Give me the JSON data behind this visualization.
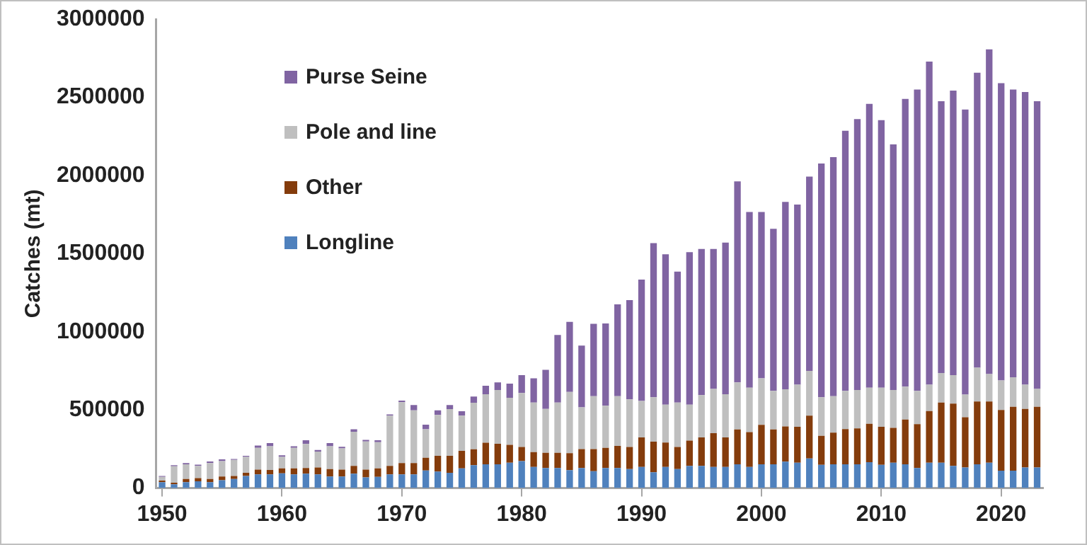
{
  "chart_data": {
    "type": "bar",
    "stacked": true,
    "ylabel": "Catches (mt)",
    "categories": [
      "1950",
      null,
      null,
      null,
      null,
      null,
      null,
      null,
      null,
      null,
      "1960",
      null,
      null,
      null,
      null,
      null,
      null,
      null,
      null,
      null,
      "1970",
      null,
      null,
      null,
      null,
      null,
      null,
      null,
      null,
      null,
      "1980",
      null,
      null,
      null,
      null,
      null,
      null,
      null,
      null,
      null,
      "1990",
      null,
      null,
      null,
      null,
      null,
      null,
      null,
      null,
      null,
      "2000",
      null,
      null,
      null,
      null,
      null,
      null,
      null,
      null,
      null,
      "2010",
      null,
      null,
      null,
      null,
      null,
      null,
      null,
      null,
      null,
      "2020",
      null,
      null,
      null
    ],
    "series": [
      {
        "name": "Longline",
        "color": "#4f81bd",
        "values": [
          38000,
          24000,
          38000,
          44000,
          38000,
          50000,
          58000,
          78000,
          88000,
          88000,
          94000,
          88000,
          92000,
          88000,
          74000,
          74000,
          92000,
          68000,
          72000,
          88000,
          88000,
          88000,
          112000,
          106000,
          98000,
          126000,
          146000,
          152000,
          152000,
          162000,
          172000,
          135000,
          128000,
          128000,
          115000,
          128000,
          108000,
          128000,
          128000,
          122000,
          135000,
          101000,
          135000,
          122000,
          142000,
          142000,
          135000,
          135000,
          152000,
          135000,
          152000,
          152000,
          169000,
          162000,
          189000,
          149000,
          152000,
          152000,
          152000,
          166000,
          149000,
          162000,
          152000,
          128000,
          162000,
          162000,
          142000,
          132000,
          152000,
          162000,
          111000,
          111000,
          132000,
          132000
        ]
      },
      {
        "name": "Other",
        "color": "#843c0c",
        "values": [
          10000,
          10000,
          20000,
          20000,
          20000,
          24000,
          20000,
          20000,
          30000,
          28000,
          32000,
          38000,
          36000,
          44000,
          48000,
          44000,
          50000,
          50000,
          54000,
          54000,
          72000,
          72000,
          82000,
          100000,
          108000,
          112000,
          102000,
          138000,
          132000,
          115000,
          91000,
          95000,
          98000,
          98000,
          108000,
          122000,
          142000,
          129000,
          142000,
          141000,
          189000,
          196000,
          156000,
          141000,
          162000,
          182000,
          216000,
          189000,
          223000,
          223000,
          253000,
          223000,
          226000,
          230000,
          274000,
          185000,
          203000,
          226000,
          230000,
          246000,
          243000,
          223000,
          287000,
          281000,
          331000,
          385000,
          399000,
          321000,
          402000,
          392000,
          389000,
          409000,
          375000,
          388000
        ]
      },
      {
        "name": "Pole and line",
        "color": "#bfbfbf",
        "values": [
          24000,
          106000,
          94000,
          78000,
          102000,
          98000,
          102000,
          102000,
          140000,
          152000,
          74000,
          132000,
          154000,
          102000,
          146000,
          136000,
          218000,
          180000,
          168000,
          322000,
          390000,
          338000,
          182000,
          262000,
          300000,
          226000,
          298000,
          311000,
          344000,
          301000,
          345000,
          317000,
          281000,
          321000,
          392000,
          267000,
          338000,
          270000,
          318000,
          305000,
          233000,
          284000,
          243000,
          284000,
          230000,
          271000,
          284000,
          277000,
          301000,
          284000,
          298000,
          247000,
          237000,
          270000,
          287000,
          247000,
          233000,
          244000,
          246000,
          230000,
          250000,
          243000,
          210000,
          213000,
          169000,
          189000,
          182000,
          145000,
          216000,
          176000,
          189000,
          189000,
          155000,
          115000
        ]
      },
      {
        "name": "Purse Seine",
        "color": "#8064a2",
        "values": [
          6000,
          6000,
          8000,
          8000,
          10000,
          12000,
          6000,
          6000,
          14000,
          20000,
          10000,
          10000,
          24000,
          10000,
          20000,
          10000,
          16000,
          10000,
          12000,
          8000,
          10000,
          34000,
          30000,
          30000,
          26000,
          28000,
          40000,
          54000,
          48000,
          91000,
          115000,
          156000,
          250000,
          433000,
          449000,
          395000,
          463000,
          527000,
          588000,
          635000,
          777000,
          986000,
          962000,
          838000,
          976000,
          935000,
          895000,
          970000,
          1287000,
          1125000,
          1064000,
          1037000,
          1199000,
          1152000,
          1243000,
          1496000,
          1530000,
          1665000,
          1733000,
          1817000,
          1712000,
          1571000,
          1841000,
          1928000,
          2067000,
          1740000,
          1821000,
          1824000,
          1888000,
          2077000,
          1902000,
          1841000,
          1872000,
          1841000
        ]
      }
    ],
    "ylim": [
      0,
      3000000
    ],
    "yticks": [
      0,
      500000,
      1000000,
      1500000,
      2000000,
      2500000,
      3000000
    ],
    "grid": false,
    "legend": "top left"
  }
}
